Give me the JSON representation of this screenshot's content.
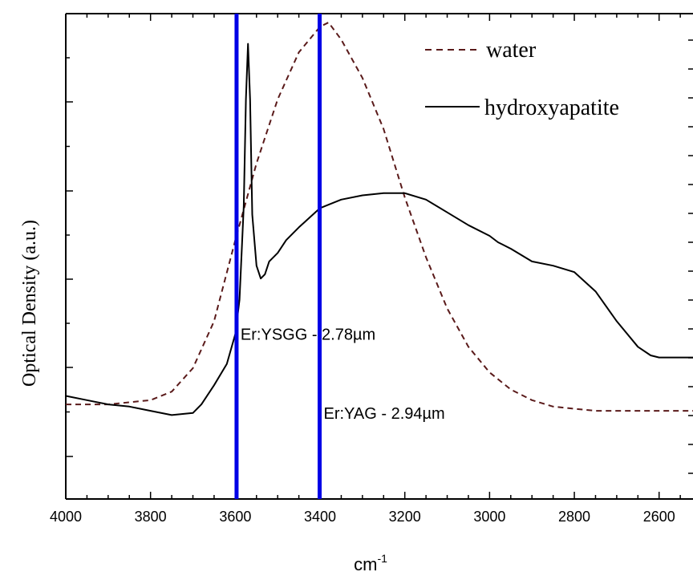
{
  "chart_data": {
    "type": "line",
    "title": "",
    "xlabel": "cm",
    "xlabel_superscript": "-1",
    "ylabel": "Optical Density (a.u.)",
    "xlim": [
      4000,
      2520
    ],
    "ylim": [
      0,
      1
    ],
    "x_reversed": true,
    "x_ticks": [
      4000,
      3800,
      3600,
      3400,
      3200,
      3000,
      2800,
      2600
    ],
    "x_tick_labels": [
      "4000",
      "3800",
      "3600",
      "3400",
      "3200",
      "3000",
      "2800",
      "2600"
    ],
    "y_tick_labels_shown": false,
    "grid": false,
    "legend": "top-right",
    "series": [
      {
        "name": "water",
        "style": "dashed",
        "color": "#5a1a1a",
        "x": [
          4000,
          3900,
          3800,
          3750,
          3700,
          3650,
          3600,
          3550,
          3500,
          3450,
          3400,
          3380,
          3350,
          3300,
          3250,
          3200,
          3150,
          3100,
          3050,
          3000,
          2950,
          2900,
          2850,
          2800,
          2750,
          2700,
          2650,
          2600,
          2520
        ],
        "y": [
          0.105,
          0.105,
          0.115,
          0.135,
          0.19,
          0.3,
          0.49,
          0.67,
          0.82,
          0.93,
          0.99,
          1.0,
          0.96,
          0.87,
          0.75,
          0.59,
          0.45,
          0.33,
          0.24,
          0.18,
          0.14,
          0.115,
          0.1,
          0.095,
          0.09,
          0.09,
          0.09,
          0.09,
          0.09
        ]
      },
      {
        "name": "hydroxyapatite",
        "style": "solid",
        "color": "#000000",
        "x": [
          4000,
          3950,
          3900,
          3850,
          3800,
          3750,
          3700,
          3680,
          3650,
          3620,
          3600,
          3590,
          3580,
          3575,
          3570,
          3565,
          3560,
          3550,
          3540,
          3530,
          3520,
          3500,
          3480,
          3450,
          3400,
          3350,
          3300,
          3250,
          3200,
          3150,
          3100,
          3050,
          3000,
          2980,
          2970,
          2950,
          2900,
          2850,
          2800,
          2750,
          2700,
          2650,
          2620,
          2600,
          2550,
          2520
        ],
        "y": [
          0.125,
          0.115,
          0.105,
          0.1,
          0.09,
          0.08,
          0.085,
          0.105,
          0.15,
          0.2,
          0.27,
          0.35,
          0.57,
          0.82,
          0.95,
          0.82,
          0.55,
          0.43,
          0.4,
          0.41,
          0.44,
          0.46,
          0.49,
          0.52,
          0.565,
          0.585,
          0.595,
          0.6,
          0.6,
          0.585,
          0.555,
          0.525,
          0.5,
          0.485,
          0.48,
          0.47,
          0.44,
          0.43,
          0.415,
          0.37,
          0.3,
          0.24,
          0.22,
          0.215,
          0.215,
          0.215
        ]
      }
    ],
    "vlines": [
      {
        "x": 3597,
        "color": "#0000e6",
        "label": "Er:YSGG - 2.78µm",
        "label_y": 0.27
      },
      {
        "x": 3401,
        "color": "#0000e6",
        "label": "Er:YAG - 2.94µm",
        "label_y": 0.085
      }
    ]
  }
}
